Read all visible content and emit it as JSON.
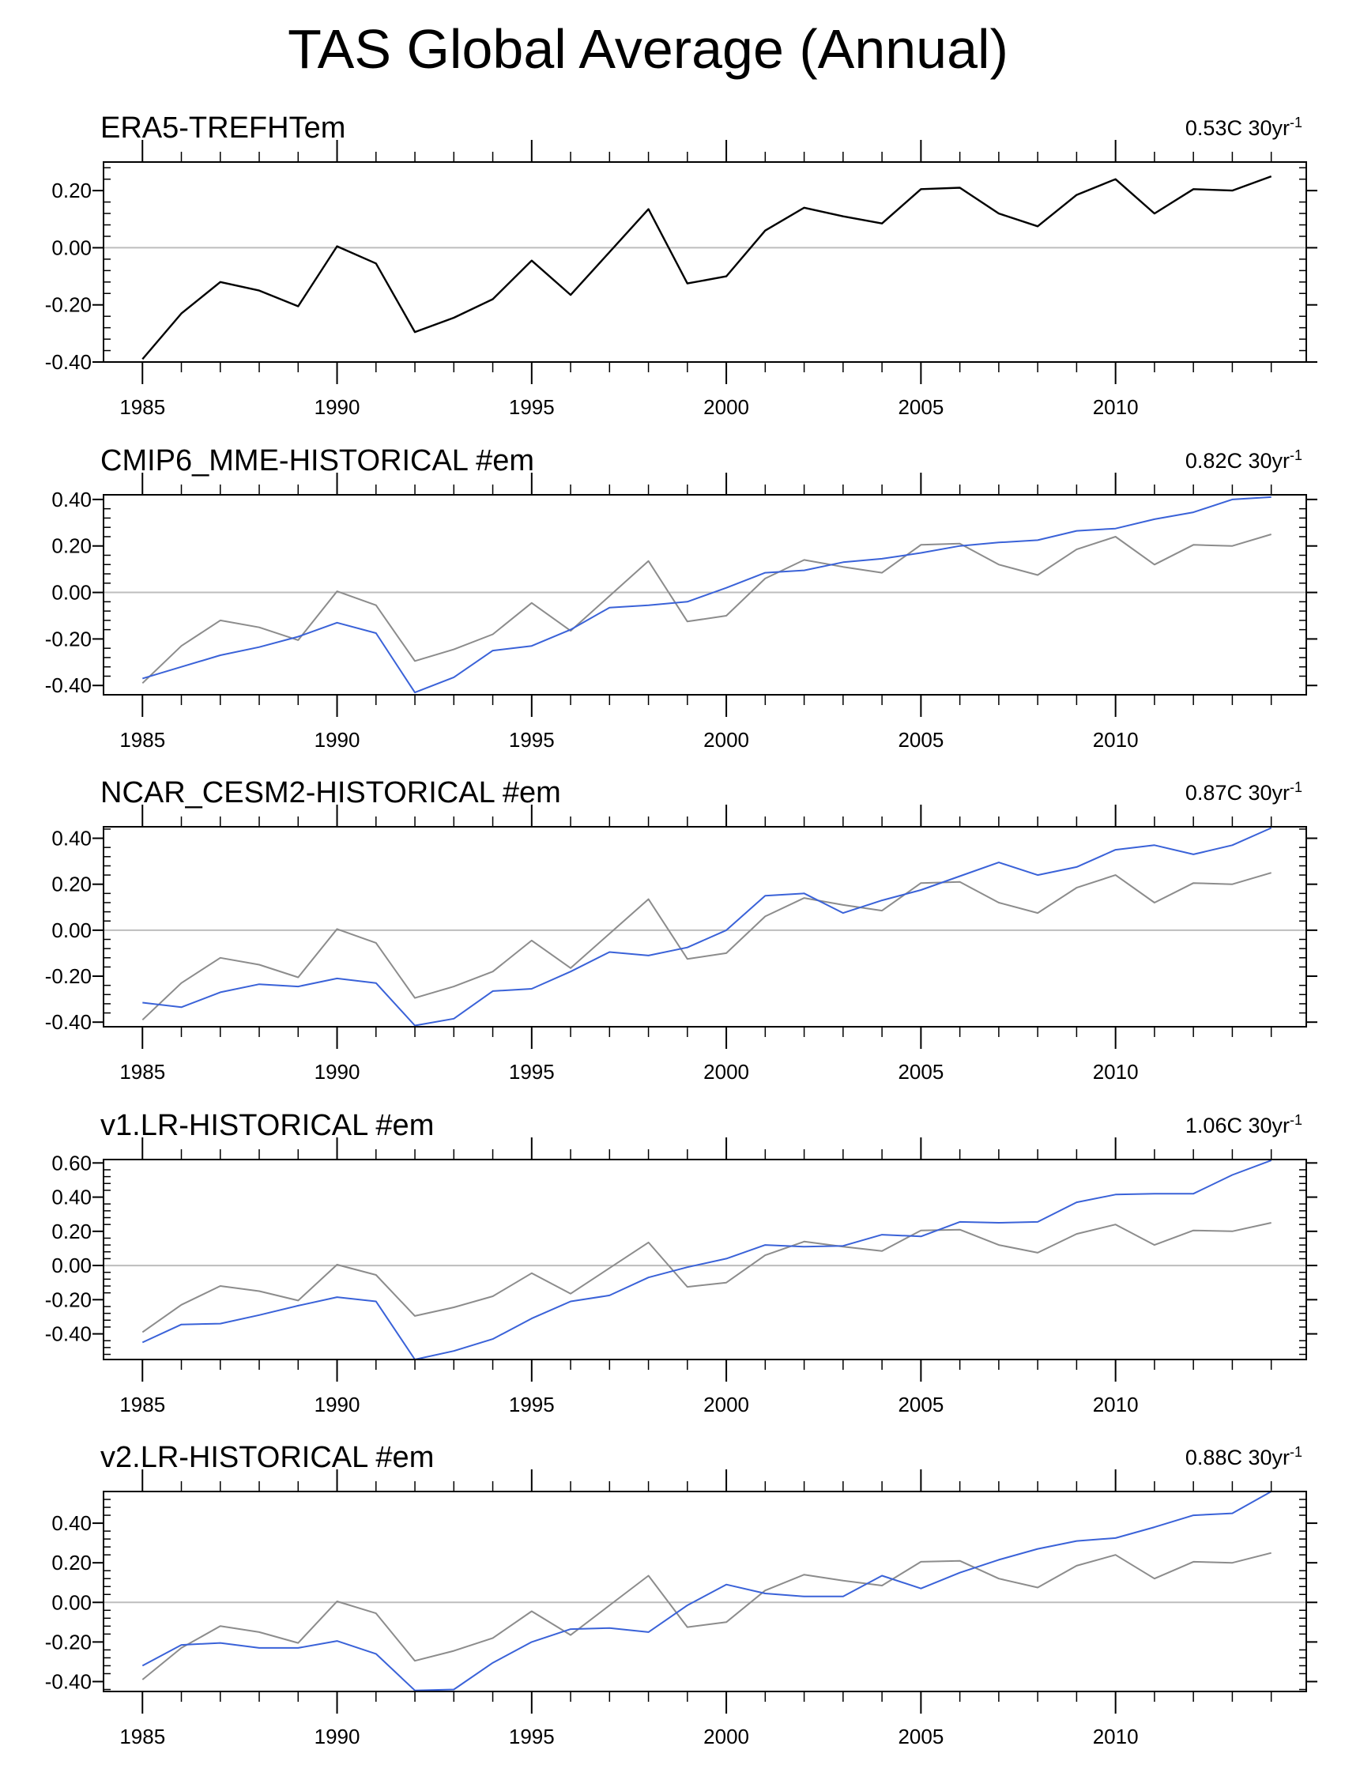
{
  "title": "TAS Global Average (Annual)",
  "colors": {
    "observed": "#000000",
    "reference": "#8c8c8c",
    "model": "#3a62d8",
    "zero_line": "#bdbdbd",
    "frame": "#000000"
  },
  "chart_data": [
    {
      "type": "line",
      "title": "ERA5-TREFHTem",
      "trend_text": "0.53C 30yr",
      "trend_sup": "-1",
      "x": [
        1985,
        1986,
        1987,
        1988,
        1989,
        1990,
        1991,
        1992,
        1993,
        1994,
        1995,
        1996,
        1997,
        1998,
        1999,
        2000,
        2001,
        2002,
        2003,
        2004,
        2005,
        2006,
        2007,
        2008,
        2009,
        2010,
        2011,
        2012,
        2013,
        2014
      ],
      "xlim": [
        1984,
        2014.9
      ],
      "xticks": [
        1985,
        1990,
        1995,
        2000,
        2005,
        2010
      ],
      "ylim": [
        -0.4,
        0.3
      ],
      "yticks": [
        -0.4,
        -0.2,
        0.0,
        0.2
      ],
      "yticklabels": [
        "-0.40",
        "-0.20",
        "0.00",
        "0.20"
      ],
      "series": [
        {
          "name": "ERA5",
          "role": "observed",
          "values": [
            -0.39,
            -0.23,
            -0.12,
            -0.15,
            -0.205,
            0.005,
            -0.055,
            -0.295,
            -0.245,
            -0.18,
            -0.045,
            -0.165,
            -0.015,
            0.135,
            -0.125,
            -0.1,
            0.06,
            0.14,
            0.11,
            0.085,
            0.205,
            0.21,
            0.12,
            0.075,
            0.185,
            0.24,
            0.12,
            0.205,
            0.2,
            0.25
          ]
        }
      ]
    },
    {
      "type": "line",
      "title": "CMIP6_MME-HISTORICAL  #em",
      "trend_text": "0.82C 30yr",
      "trend_sup": "-1",
      "x": [
        1985,
        1986,
        1987,
        1988,
        1989,
        1990,
        1991,
        1992,
        1993,
        1994,
        1995,
        1996,
        1997,
        1998,
        1999,
        2000,
        2001,
        2002,
        2003,
        2004,
        2005,
        2006,
        2007,
        2008,
        2009,
        2010,
        2011,
        2012,
        2013,
        2014
      ],
      "xlim": [
        1984,
        2014.9
      ],
      "xticks": [
        1985,
        1990,
        1995,
        2000,
        2005,
        2010
      ],
      "ylim": [
        -0.44,
        0.42
      ],
      "yticks": [
        -0.4,
        -0.2,
        0.0,
        0.2,
        0.4
      ],
      "yticklabels": [
        "-0.40",
        "-0.20",
        "0.00",
        "0.20",
        "0.40"
      ],
      "series": [
        {
          "name": "ERA5",
          "role": "reference",
          "values": [
            -0.39,
            -0.23,
            -0.12,
            -0.15,
            -0.205,
            0.005,
            -0.055,
            -0.295,
            -0.245,
            -0.18,
            -0.045,
            -0.165,
            -0.015,
            0.135,
            -0.125,
            -0.1,
            0.06,
            0.14,
            0.11,
            0.085,
            0.205,
            0.21,
            0.12,
            0.075,
            0.185,
            0.24,
            0.12,
            0.205,
            0.2,
            0.25
          ]
        },
        {
          "name": "CMIP6_MME",
          "role": "model",
          "values": [
            -0.37,
            -0.32,
            -0.27,
            -0.235,
            -0.19,
            -0.13,
            -0.175,
            -0.43,
            -0.365,
            -0.25,
            -0.23,
            -0.16,
            -0.065,
            -0.055,
            -0.04,
            0.02,
            0.085,
            0.095,
            0.13,
            0.145,
            0.17,
            0.2,
            0.215,
            0.225,
            0.265,
            0.275,
            0.315,
            0.345,
            0.4,
            0.41
          ]
        }
      ]
    },
    {
      "type": "line",
      "title": "NCAR_CESM2-HISTORICAL  #em",
      "trend_text": "0.87C 30yr",
      "trend_sup": "-1",
      "x": [
        1985,
        1986,
        1987,
        1988,
        1989,
        1990,
        1991,
        1992,
        1993,
        1994,
        1995,
        1996,
        1997,
        1998,
        1999,
        2000,
        2001,
        2002,
        2003,
        2004,
        2005,
        2006,
        2007,
        2008,
        2009,
        2010,
        2011,
        2012,
        2013,
        2014
      ],
      "xlim": [
        1984,
        2014.9
      ],
      "xticks": [
        1985,
        1990,
        1995,
        2000,
        2005,
        2010
      ],
      "ylim": [
        -0.42,
        0.45
      ],
      "yticks": [
        -0.4,
        -0.2,
        0.0,
        0.2,
        0.4
      ],
      "yticklabels": [
        "-0.40",
        "-0.20",
        "0.00",
        "0.20",
        "0.40"
      ],
      "series": [
        {
          "name": "ERA5",
          "role": "reference",
          "values": [
            -0.39,
            -0.23,
            -0.12,
            -0.15,
            -0.205,
            0.005,
            -0.055,
            -0.295,
            -0.245,
            -0.18,
            -0.045,
            -0.165,
            -0.015,
            0.135,
            -0.125,
            -0.1,
            0.06,
            0.14,
            0.11,
            0.085,
            0.205,
            0.21,
            0.12,
            0.075,
            0.185,
            0.24,
            0.12,
            0.205,
            0.2,
            0.25
          ]
        },
        {
          "name": "NCAR_CESM2",
          "role": "model",
          "values": [
            -0.315,
            -0.335,
            -0.27,
            -0.235,
            -0.245,
            -0.21,
            -0.23,
            -0.415,
            -0.385,
            -0.265,
            -0.255,
            -0.18,
            -0.095,
            -0.11,
            -0.075,
            0.0,
            0.15,
            0.16,
            0.075,
            0.13,
            0.175,
            0.235,
            0.295,
            0.24,
            0.275,
            0.35,
            0.37,
            0.33,
            0.37,
            0.445
          ]
        }
      ]
    },
    {
      "type": "line",
      "title": "v1.LR-HISTORICAL  #em",
      "trend_text": "1.06C 30yr",
      "trend_sup": "-1",
      "x": [
        1985,
        1986,
        1987,
        1988,
        1989,
        1990,
        1991,
        1992,
        1993,
        1994,
        1995,
        1996,
        1997,
        1998,
        1999,
        2000,
        2001,
        2002,
        2003,
        2004,
        2005,
        2006,
        2007,
        2008,
        2009,
        2010,
        2011,
        2012,
        2013,
        2014
      ],
      "xlim": [
        1984,
        2014.9
      ],
      "xticks": [
        1985,
        1990,
        1995,
        2000,
        2005,
        2010
      ],
      "ylim": [
        -0.55,
        0.62
      ],
      "yticks": [
        -0.4,
        -0.2,
        0.0,
        0.2,
        0.4,
        0.6
      ],
      "yticklabels": [
        "-0.40",
        "-0.20",
        "0.00",
        "0.20",
        "0.40",
        "0.60"
      ],
      "series": [
        {
          "name": "ERA5",
          "role": "reference",
          "values": [
            -0.39,
            -0.23,
            -0.12,
            -0.15,
            -0.205,
            0.005,
            -0.055,
            -0.295,
            -0.245,
            -0.18,
            -0.045,
            -0.165,
            -0.015,
            0.135,
            -0.125,
            -0.1,
            0.06,
            0.14,
            0.11,
            0.085,
            0.205,
            0.21,
            0.12,
            0.075,
            0.185,
            0.24,
            0.12,
            0.205,
            0.2,
            0.25
          ]
        },
        {
          "name": "v1.LR",
          "role": "model",
          "values": [
            -0.45,
            -0.345,
            -0.34,
            -0.29,
            -0.235,
            -0.185,
            -0.21,
            -0.55,
            -0.5,
            -0.43,
            -0.31,
            -0.21,
            -0.175,
            -0.07,
            -0.01,
            0.04,
            0.12,
            0.11,
            0.115,
            0.18,
            0.17,
            0.255,
            0.25,
            0.255,
            0.37,
            0.415,
            0.42,
            0.42,
            0.53,
            0.615
          ]
        }
      ]
    },
    {
      "type": "line",
      "title": "v2.LR-HISTORICAL  #em",
      "trend_text": "0.88C 30yr",
      "trend_sup": "-1",
      "x": [
        1985,
        1986,
        1987,
        1988,
        1989,
        1990,
        1991,
        1992,
        1993,
        1994,
        1995,
        1996,
        1997,
        1998,
        1999,
        2000,
        2001,
        2002,
        2003,
        2004,
        2005,
        2006,
        2007,
        2008,
        2009,
        2010,
        2011,
        2012,
        2013,
        2014
      ],
      "xlim": [
        1984,
        2014.9
      ],
      "xticks": [
        1985,
        1990,
        1995,
        2000,
        2005,
        2010
      ],
      "ylim": [
        -0.45,
        0.56
      ],
      "yticks": [
        -0.4,
        -0.2,
        0.0,
        0.2,
        0.4
      ],
      "yticklabels": [
        "-0.40",
        "-0.20",
        "0.00",
        "0.20",
        "0.40"
      ],
      "series": [
        {
          "name": "ERA5",
          "role": "reference",
          "values": [
            -0.39,
            -0.23,
            -0.12,
            -0.15,
            -0.205,
            0.005,
            -0.055,
            -0.295,
            -0.245,
            -0.18,
            -0.045,
            -0.165,
            -0.015,
            0.135,
            -0.125,
            -0.1,
            0.06,
            0.14,
            0.11,
            0.085,
            0.205,
            0.21,
            0.12,
            0.075,
            0.185,
            0.24,
            0.12,
            0.205,
            0.2,
            0.25
          ]
        },
        {
          "name": "v2.LR",
          "role": "model",
          "values": [
            -0.32,
            -0.215,
            -0.205,
            -0.23,
            -0.23,
            -0.195,
            -0.26,
            -0.445,
            -0.44,
            -0.305,
            -0.2,
            -0.135,
            -0.13,
            -0.15,
            -0.015,
            0.09,
            0.045,
            0.03,
            0.03,
            0.135,
            0.07,
            0.15,
            0.215,
            0.27,
            0.31,
            0.325,
            0.38,
            0.44,
            0.45,
            0.56
          ]
        }
      ]
    }
  ]
}
